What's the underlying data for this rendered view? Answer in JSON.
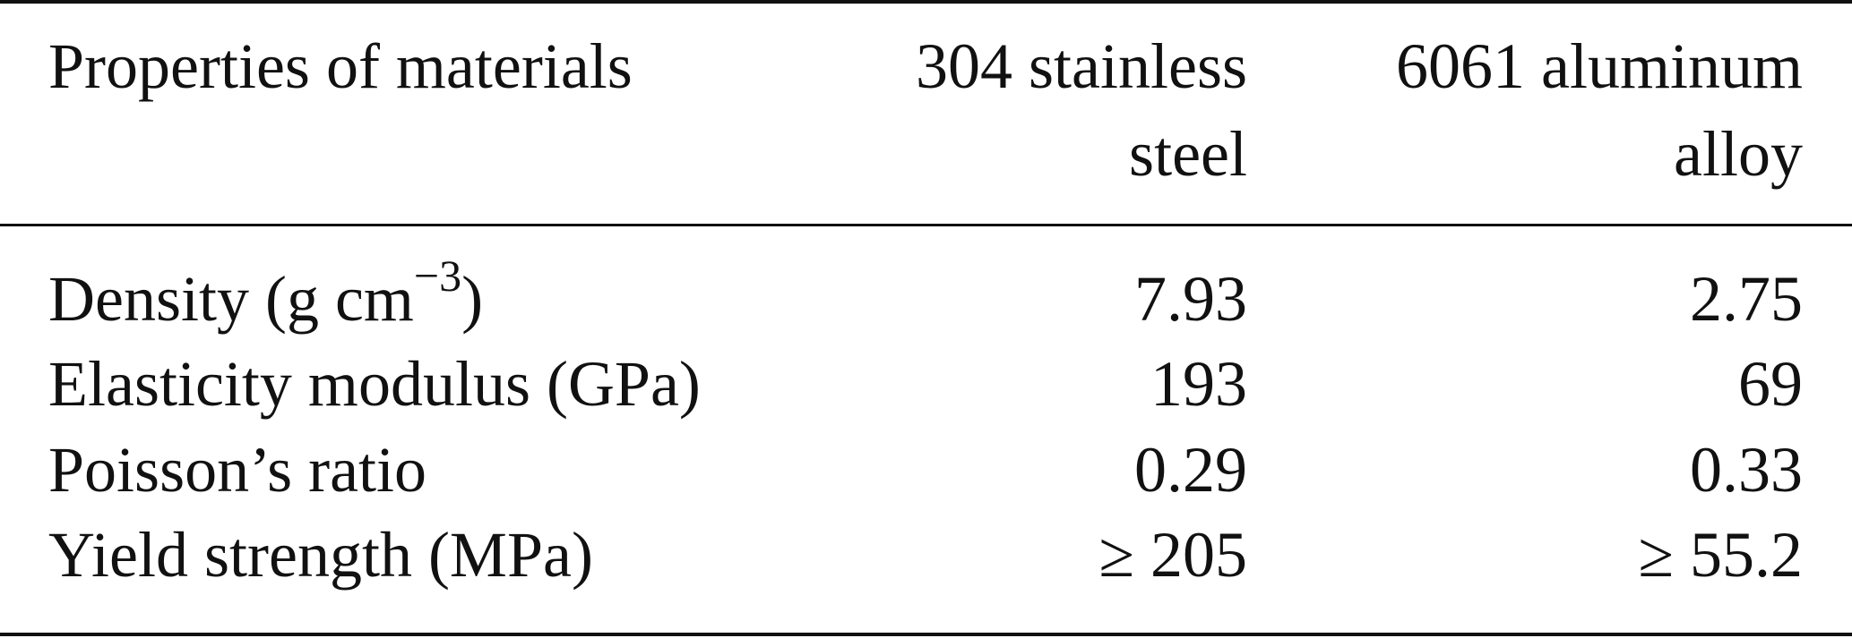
{
  "table": {
    "header": {
      "property": "Properties of materials",
      "steel_line1": "304 stainless",
      "steel_line2": "steel",
      "aluminum_line1": "6061 aluminum",
      "aluminum_line2": "alloy"
    },
    "rows": [
      {
        "property_prefix": "Density (g cm",
        "property_exponent": "−3",
        "property_suffix": ")",
        "steel": "7.93",
        "aluminum": "2.75"
      },
      {
        "property": "Elasticity modulus (GPa)",
        "steel": "193",
        "aluminum": "69"
      },
      {
        "property": "Poisson’s ratio",
        "steel": "0.29",
        "aluminum": "0.33"
      },
      {
        "property": "Yield strength (MPa)",
        "steel": "≥ 205",
        "aluminum": "≥ 55.2"
      }
    ]
  }
}
